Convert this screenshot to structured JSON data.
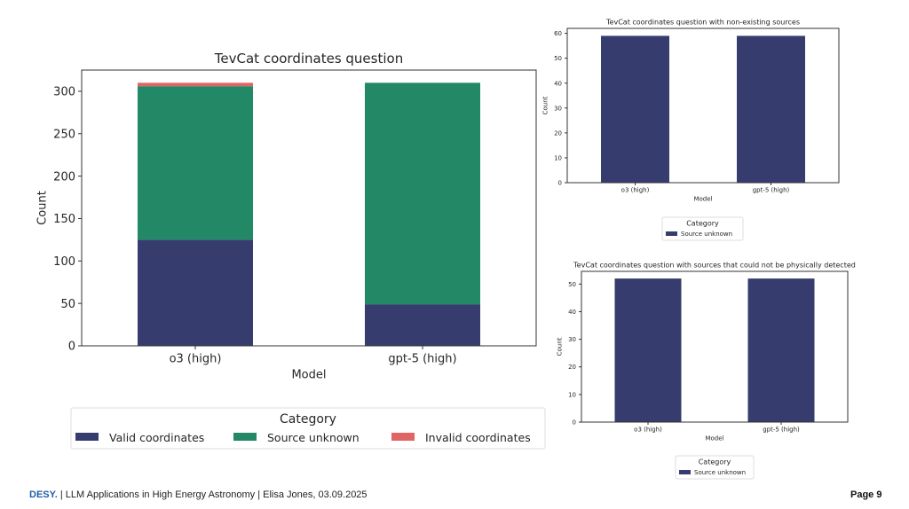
{
  "colors": {
    "valid": "#363d6e",
    "unknown": "#228866",
    "invalid": "#e06666",
    "footer_brand": "#1f5fa8"
  },
  "chart_data": [
    {
      "type": "bar",
      "stacked": true,
      "title": "TevCat coordinates question",
      "xlabel": "Model",
      "ylabel": "Count",
      "categories": [
        "o3 (high)",
        "gpt-5 (high)"
      ],
      "series": [
        {
          "name": "Valid coordinates",
          "values": [
            125,
            49
          ]
        },
        {
          "name": "Source unknown",
          "values": [
            181,
            261
          ]
        },
        {
          "name": "Invalid coordinates",
          "values": [
            4,
            0
          ]
        }
      ],
      "ylim": [
        0,
        325
      ],
      "yticks": [
        0,
        50,
        100,
        150,
        200,
        250,
        300
      ],
      "grid": false,
      "legend": {
        "title": "Category",
        "placement": "bottom",
        "entries": [
          "Valid coordinates",
          "Source unknown",
          "Invalid coordinates"
        ]
      }
    },
    {
      "type": "bar",
      "stacked": false,
      "title": "TevCat coordinates question with non-existing sources",
      "xlabel": "Model",
      "ylabel": "Count",
      "categories": [
        "o3 (high)",
        "gpt-5 (high)"
      ],
      "series": [
        {
          "name": "Source unknown",
          "values": [
            59,
            59
          ]
        }
      ],
      "ylim": [
        0,
        62
      ],
      "yticks": [
        0,
        10,
        20,
        30,
        40,
        50,
        60
      ],
      "grid": false,
      "legend": {
        "title": "Category",
        "placement": "bottom",
        "entries": [
          "Source unknown"
        ]
      }
    },
    {
      "type": "bar",
      "stacked": false,
      "title": "TevCat coordinates question with sources that could not be physically detected",
      "xlabel": "Model",
      "ylabel": "Count",
      "categories": [
        "o3 (high)",
        "gpt-5 (high)"
      ],
      "series": [
        {
          "name": "Source unknown",
          "values": [
            52,
            52
          ]
        }
      ],
      "ylim": [
        0,
        54.6
      ],
      "yticks": [
        0,
        10,
        20,
        30,
        40,
        50
      ],
      "grid": false,
      "legend": {
        "title": "Category",
        "placement": "bottom",
        "entries": [
          "Source unknown"
        ]
      }
    }
  ],
  "footer": {
    "brand": "DESY.",
    "text": " | LLM Applications in High Energy Astronomy | Elisa Jones, 03.09.2025",
    "page": "Page 9"
  }
}
